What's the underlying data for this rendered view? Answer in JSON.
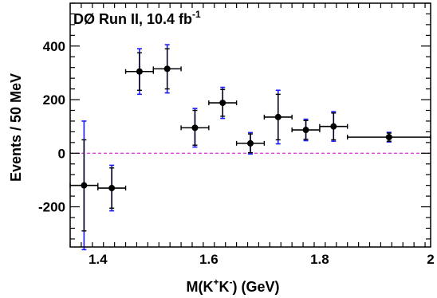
{
  "chart_data": {
    "type": "scatter",
    "title": "DØ Run II, 10.4 fb",
    "title_superscript": "-1",
    "xlabel": {
      "prefix": "M(K",
      "sup1": "+",
      "mid": "K",
      "sup2": "-",
      "suffix": ") (GeV)"
    },
    "ylabel": "Events / 50 MeV",
    "xlim": [
      1.35,
      2.0
    ],
    "ylim": [
      -350,
      560
    ],
    "x_ticks": [
      1.4,
      1.6,
      1.8,
      2.0
    ],
    "x_tick_labels": [
      "1.4",
      "1.6",
      "1.8",
      "2"
    ],
    "y_ticks": [
      -200,
      0,
      200,
      400
    ],
    "y_tick_labels": [
      "-200",
      "0",
      "200",
      "400"
    ],
    "grid": false,
    "legend": "none",
    "reference_line": {
      "y": 0,
      "style": "dashed",
      "color": "#e040e0"
    },
    "points": [
      {
        "x": 1.375,
        "xlo": 1.35,
        "xhi": 1.4,
        "y": -120,
        "stat": 170,
        "syst": 240
      },
      {
        "x": 1.425,
        "xlo": 1.4,
        "xhi": 1.45,
        "y": -130,
        "stat": 75,
        "syst": 85
      },
      {
        "x": 1.475,
        "xlo": 1.45,
        "xhi": 1.5,
        "y": 305,
        "stat": 70,
        "syst": 85
      },
      {
        "x": 1.525,
        "xlo": 1.5,
        "xhi": 1.55,
        "y": 315,
        "stat": 75,
        "syst": 90
      },
      {
        "x": 1.575,
        "xlo": 1.55,
        "xhi": 1.6,
        "y": 95,
        "stat": 65,
        "syst": 72
      },
      {
        "x": 1.625,
        "xlo": 1.6,
        "xhi": 1.65,
        "y": 188,
        "stat": 50,
        "syst": 58
      },
      {
        "x": 1.675,
        "xlo": 1.65,
        "xhi": 1.7,
        "y": 37,
        "stat": 35,
        "syst": 40
      },
      {
        "x": 1.725,
        "xlo": 1.7,
        "xhi": 1.75,
        "y": 135,
        "stat": 85,
        "syst": 100
      },
      {
        "x": 1.775,
        "xlo": 1.75,
        "xhi": 1.8,
        "y": 87,
        "stat": 35,
        "syst": 40
      },
      {
        "x": 1.825,
        "xlo": 1.8,
        "xhi": 1.85,
        "y": 100,
        "stat": 50,
        "syst": 55
      },
      {
        "x": 1.925,
        "xlo": 1.85,
        "xhi": 2.0,
        "y": 60,
        "stat": 15,
        "syst": 18
      }
    ],
    "colors": {
      "marker": "#000000",
      "stat_error": "#000000",
      "syst_error": "#1a1aff",
      "zero_line": "#e040e0"
    }
  }
}
